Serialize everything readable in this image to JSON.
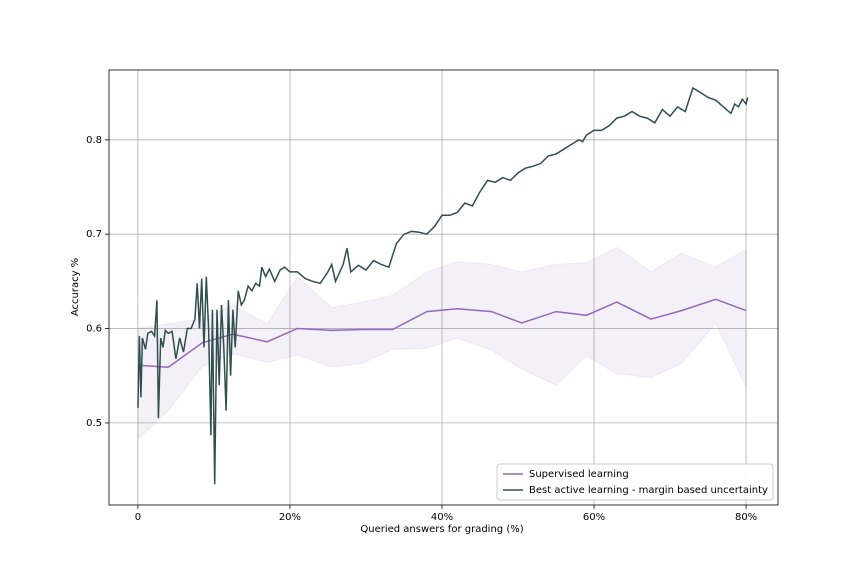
{
  "chart_data": {
    "type": "line",
    "xlabel": "Queried answers for grading (%)",
    "ylabel": "Accuracy %",
    "xlim": [
      -3.8,
      84.2
    ],
    "ylim": [
      0.413,
      0.874
    ],
    "xticks": [
      0,
      {
        "value": 20,
        "label": "20%"
      },
      {
        "value": 40,
        "label": "40%"
      },
      {
        "value": 60,
        "label": "60%"
      },
      {
        "value": 80,
        "label": "80%"
      }
    ],
    "yticks": [
      0.5,
      0.6,
      0.7,
      0.8
    ],
    "grid": true,
    "legend": "lower right",
    "series": [
      {
        "name": "Supervised learning",
        "color": "#9467bd",
        "band_color": "#9467bd",
        "x": [
          0,
          4,
          8.5,
          12.5,
          17,
          21,
          25.5,
          29.5,
          33.5,
          38,
          42,
          46.5,
          50.5,
          55,
          59,
          63,
          67.5,
          71.5,
          76,
          80
        ],
        "values": [
          0.561,
          0.559,
          0.585,
          0.594,
          0.586,
          0.6,
          0.598,
          0.599,
          0.599,
          0.618,
          0.621,
          0.618,
          0.606,
          0.618,
          0.614,
          0.628,
          0.61,
          0.619,
          0.631,
          0.619
        ],
        "upper": [
          0.6,
          0.605,
          0.61,
          0.625,
          0.605,
          0.655,
          0.622,
          0.628,
          0.635,
          0.66,
          0.671,
          0.668,
          0.66,
          0.668,
          0.67,
          0.686,
          0.66,
          0.68,
          0.665,
          0.684
        ],
        "lower": [
          0.483,
          0.513,
          0.56,
          0.573,
          0.564,
          0.572,
          0.559,
          0.563,
          0.578,
          0.579,
          0.59,
          0.577,
          0.557,
          0.54,
          0.571,
          0.552,
          0.548,
          0.563,
          0.605,
          0.538
        ]
      },
      {
        "name": "Best active learning - margin based uncertainty",
        "color": "#2f4f4f",
        "x": [
          0,
          0.2,
          0.4,
          0.6,
          1,
          1.3,
          1.8,
          2.2,
          2.5,
          2.7,
          3,
          3.3,
          3.6,
          4,
          4.5,
          5,
          5.5,
          6,
          6.5,
          7,
          7.5,
          7.8,
          8.1,
          8.4,
          8.7,
          9,
          9.3,
          9.6,
          9.8,
          10.1,
          10.4,
          10.7,
          11,
          11.3,
          11.6,
          11.9,
          12.2,
          12.5,
          12.8,
          13.2,
          13.6,
          14,
          14.5,
          15,
          15.5,
          16,
          16.3,
          16.8,
          17.3,
          18,
          18.7,
          19.3,
          20,
          21,
          22,
          23,
          24,
          25,
          25.5,
          26,
          27,
          27.5,
          28,
          29,
          30,
          31,
          32,
          33,
          34,
          35,
          36,
          37,
          38,
          39,
          40,
          41,
          42,
          43,
          44,
          45,
          46,
          47,
          48,
          49,
          50,
          51,
          52,
          53,
          54,
          55,
          56,
          57,
          58,
          58.5,
          59,
          60,
          61,
          62,
          63,
          64,
          65,
          66,
          67,
          68,
          69,
          70,
          71,
          72,
          73,
          74,
          75,
          76,
          77,
          78,
          78.5,
          79,
          79.5,
          80,
          80.2
        ],
        "values": [
          0.516,
          0.592,
          0.527,
          0.59,
          0.578,
          0.595,
          0.597,
          0.592,
          0.63,
          0.505,
          0.59,
          0.58,
          0.598,
          0.595,
          0.597,
          0.568,
          0.59,
          0.575,
          0.6,
          0.6,
          0.61,
          0.648,
          0.6,
          0.653,
          0.58,
          0.655,
          0.6,
          0.487,
          0.62,
          0.435,
          0.62,
          0.54,
          0.625,
          0.58,
          0.513,
          0.63,
          0.55,
          0.62,
          0.58,
          0.64,
          0.625,
          0.63,
          0.645,
          0.64,
          0.648,
          0.645,
          0.665,
          0.655,
          0.663,
          0.65,
          0.662,
          0.665,
          0.66,
          0.66,
          0.653,
          0.65,
          0.648,
          0.66,
          0.668,
          0.65,
          0.668,
          0.685,
          0.66,
          0.667,
          0.662,
          0.672,
          0.668,
          0.665,
          0.69,
          0.7,
          0.703,
          0.702,
          0.7,
          0.708,
          0.72,
          0.72,
          0.723,
          0.733,
          0.73,
          0.745,
          0.757,
          0.755,
          0.76,
          0.757,
          0.765,
          0.77,
          0.772,
          0.775,
          0.783,
          0.785,
          0.79,
          0.795,
          0.8,
          0.798,
          0.805,
          0.81,
          0.81,
          0.815,
          0.823,
          0.825,
          0.83,
          0.825,
          0.823,
          0.818,
          0.832,
          0.825,
          0.835,
          0.83,
          0.855,
          0.85,
          0.845,
          0.842,
          0.835,
          0.828,
          0.838,
          0.835,
          0.843,
          0.838,
          0.845
        ]
      }
    ]
  }
}
